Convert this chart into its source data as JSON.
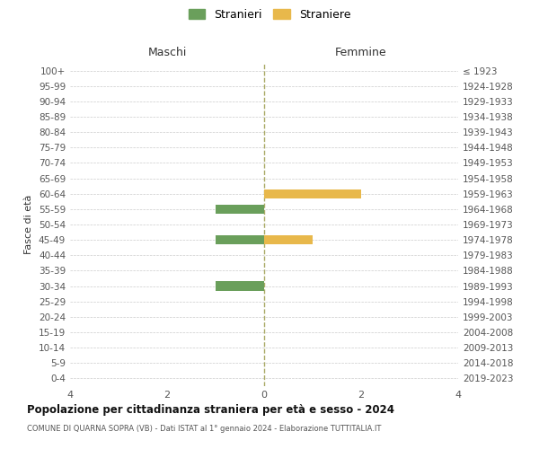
{
  "age_groups": [
    "100+",
    "95-99",
    "90-94",
    "85-89",
    "80-84",
    "75-79",
    "70-74",
    "65-69",
    "60-64",
    "55-59",
    "50-54",
    "45-49",
    "40-44",
    "35-39",
    "30-34",
    "25-29",
    "20-24",
    "15-19",
    "10-14",
    "5-9",
    "0-4"
  ],
  "birth_years": [
    "≤ 1923",
    "1924-1928",
    "1929-1933",
    "1934-1938",
    "1939-1943",
    "1944-1948",
    "1949-1953",
    "1954-1958",
    "1959-1963",
    "1964-1968",
    "1969-1973",
    "1974-1978",
    "1979-1983",
    "1984-1988",
    "1989-1993",
    "1994-1998",
    "1999-2003",
    "2004-2008",
    "2009-2013",
    "2014-2018",
    "2019-2023"
  ],
  "maschi": [
    0,
    0,
    0,
    0,
    0,
    0,
    0,
    0,
    0,
    -1,
    0,
    -1,
    0,
    0,
    -1,
    0,
    0,
    0,
    0,
    0,
    0
  ],
  "femmine": [
    0,
    0,
    0,
    0,
    0,
    0,
    0,
    0,
    2,
    0,
    0,
    1,
    0,
    0,
    0,
    0,
    0,
    0,
    0,
    0,
    0
  ],
  "color_maschi": "#6a9f5b",
  "color_femmine": "#e8b84b",
  "title": "Popolazione per cittadinanza straniera per età e sesso - 2024",
  "subtitle": "COMUNE DI QUARNA SOPRA (VB) - Dati ISTAT al 1° gennaio 2024 - Elaborazione TUTTITALIA.IT",
  "legend_maschi": "Stranieri",
  "legend_femmine": "Straniere",
  "xlabel_left": "Maschi",
  "xlabel_right": "Femmine",
  "ylabel_left": "Fasce di età",
  "xlim": 4,
  "background_color": "#ffffff",
  "grid_color": "#cccccc"
}
